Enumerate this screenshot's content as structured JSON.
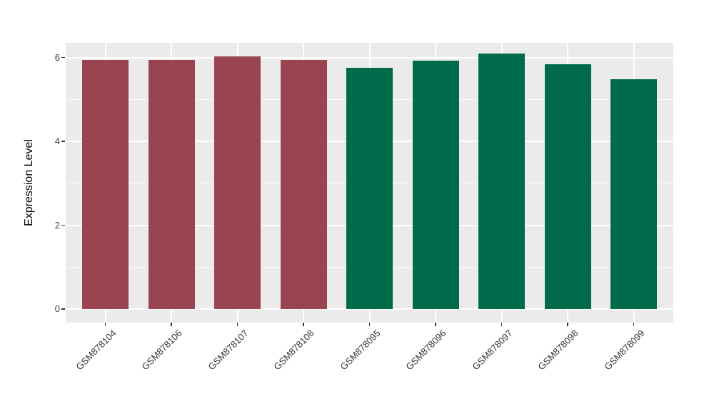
{
  "chart_data": {
    "type": "bar",
    "title": "",
    "xlabel": "",
    "ylabel": "Expression Level",
    "categories": [
      "GSM878104",
      "GSM878106",
      "GSM878107",
      "GSM878108",
      "GSM878095",
      "GSM878096",
      "GSM878097",
      "GSM878098",
      "GSM878099"
    ],
    "values": [
      5.94,
      5.94,
      6.03,
      5.94,
      5.75,
      5.92,
      6.09,
      5.83,
      5.48
    ],
    "bar_colors": [
      "#9B4451",
      "#9B4451",
      "#9B4451",
      "#9B4451",
      "#006B4A",
      "#006B4A",
      "#006B4A",
      "#006B4A",
      "#006B4A"
    ],
    "yticks": [
      0,
      2,
      4,
      6
    ],
    "minor_yticks": [
      1,
      3,
      5
    ],
    "ylim": [
      0,
      6.35
    ],
    "grid": true,
    "legend": "none",
    "panel_bg": "#EBEBEB",
    "grid_color": "#FFFFFF",
    "accent_red": "#9B4451",
    "accent_green": "#006B4A"
  }
}
